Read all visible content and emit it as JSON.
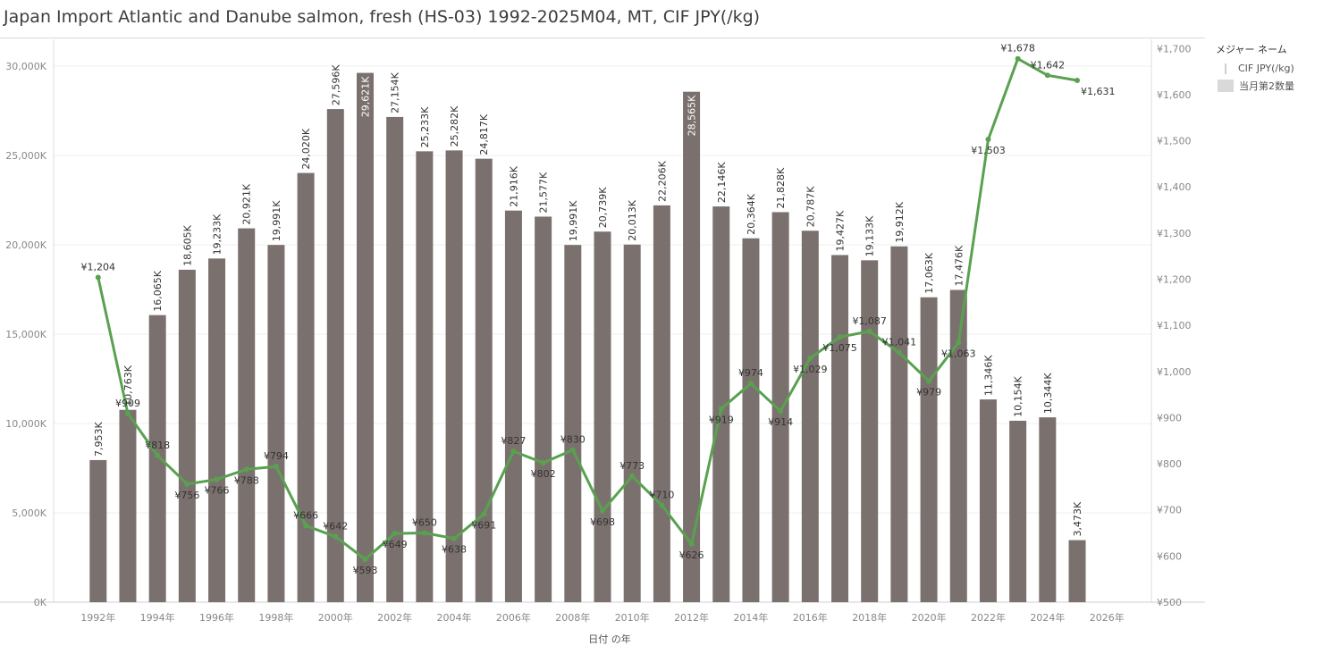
{
  "title": "Japan Import Atlantic and Danube salmon, fresh (HS-03) 1992-2025M04, MT, CIF JPY(/kg)",
  "legend": {
    "title": "メジャー ネーム",
    "items": [
      {
        "label": "CIF JPY(/kg)",
        "kind": "line"
      },
      {
        "label": "当月第2数量",
        "kind": "bar"
      }
    ]
  },
  "colors": {
    "bar": "#7a716e",
    "line": "#59a14f",
    "grid": "#efefef",
    "axis_text": "#888888"
  },
  "chart_data": {
    "type": "bar+line",
    "title": "Japan Import Atlantic and Danube salmon, fresh (HS-03) 1992-2025M04, MT, CIF JPY(/kg)",
    "xlabel": "日付 の年",
    "x_ticks": [
      "1992年",
      "1994年",
      "1996年",
      "1998年",
      "2000年",
      "2002年",
      "2004年",
      "2006年",
      "2008年",
      "2010年",
      "2012年",
      "2014年",
      "2016年",
      "2018年",
      "2020年",
      "2022年",
      "2024年",
      "2026年"
    ],
    "x_tick_years": [
      1992,
      1994,
      1996,
      1998,
      2000,
      2002,
      2004,
      2006,
      2008,
      2010,
      2012,
      2014,
      2016,
      2018,
      2020,
      2022,
      2024,
      2026
    ],
    "x_range": [
      1990.5,
      2027.5
    ],
    "y_left": {
      "label": "",
      "range": [
        0,
        31500
      ],
      "ticks": [
        0,
        5000,
        10000,
        15000,
        20000,
        25000,
        30000
      ],
      "tick_labels": [
        "0K",
        "5,000K",
        "10,000K",
        "15,000K",
        "20,000K",
        "25,000K",
        "30,000K"
      ]
    },
    "y_right": {
      "label": "",
      "range": [
        500,
        1720
      ],
      "ticks": [
        500,
        600,
        700,
        800,
        900,
        1000,
        1100,
        1200,
        1300,
        1400,
        1500,
        1600,
        1700
      ],
      "tick_labels": [
        "¥500",
        "¥600",
        "¥700",
        "¥800",
        "¥900",
        "¥1,000",
        "¥1,100",
        "¥1,200",
        "¥1,300",
        "¥1,400",
        "¥1,500",
        "¥1,600",
        "¥1,700"
      ]
    },
    "grid": true,
    "legend_position": "right",
    "years": [
      1992,
      1993,
      1994,
      1995,
      1996,
      1997,
      1998,
      1999,
      2000,
      2001,
      2002,
      2003,
      2004,
      2005,
      2006,
      2007,
      2008,
      2009,
      2010,
      2011,
      2012,
      2013,
      2014,
      2015,
      2016,
      2017,
      2018,
      2019,
      2020,
      2021,
      2022,
      2023,
      2024,
      2025
    ],
    "series": [
      {
        "name": "当月第2数量",
        "type": "bar",
        "values": [
          7953,
          10763,
          16065,
          18605,
          19233,
          20921,
          19991,
          24020,
          27596,
          29621,
          27154,
          25233,
          25282,
          24817,
          21916,
          21577,
          19991,
          20739,
          20013,
          22206,
          28565,
          22146,
          20364,
          21828,
          20787,
          19427,
          19133,
          19912,
          17063,
          17476,
          11346,
          10154,
          10344,
          3473
        ],
        "labels": [
          "7,953K",
          "10,763K",
          "16,065K",
          "18,605K",
          "19,233K",
          "20,921K",
          "19,991K",
          "24,020K",
          "27,596K",
          "29,621K",
          "27,154K",
          "25,233K",
          "25,282K",
          "24,817K",
          "21,916K",
          "21,577K",
          "19,991K",
          "20,739K",
          "20,013K",
          "22,206K",
          "28,565K",
          "22,146K",
          "20,364K",
          "21,828K",
          "20,787K",
          "19,427K",
          "19,133K",
          "19,912K",
          "17,063K",
          "17,476K",
          "11,346K",
          "10,154K",
          "10,344K",
          "3,473K"
        ]
      },
      {
        "name": "CIF JPY(/kg)",
        "type": "line",
        "values": [
          1204,
          909,
          818,
          756,
          766,
          788,
          794,
          666,
          642,
          593,
          649,
          650,
          638,
          691,
          827,
          802,
          830,
          698,
          773,
          710,
          626,
          919,
          974,
          914,
          1029,
          1075,
          1087,
          1041,
          979,
          1063,
          1503,
          1678,
          1642,
          1631
        ],
        "labels": [
          "¥1,204",
          "¥909",
          "¥818",
          "¥756",
          "¥766",
          "¥788",
          "¥794",
          "¥666",
          "¥642",
          "¥593",
          "¥649",
          "¥650",
          "¥638",
          "¥691",
          "¥827",
          "¥802",
          "¥830",
          "¥698",
          "¥773",
          "¥710",
          "¥626",
          "¥919",
          "¥974",
          "¥914",
          "¥1,029",
          "¥1,075",
          "¥1,087",
          "¥1,041",
          "¥979",
          "¥1,063",
          "¥1,503",
          "¥1,678",
          "¥1,642",
          "¥1,631"
        ]
      }
    ]
  }
}
